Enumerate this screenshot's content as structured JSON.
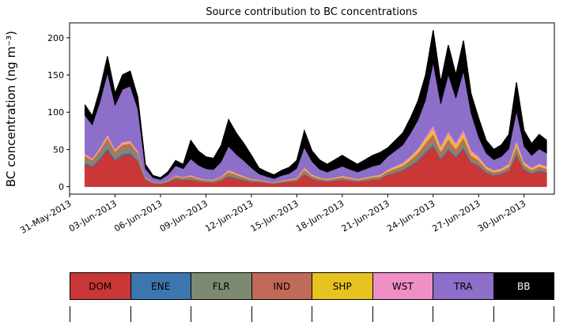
{
  "figure": {
    "title": "Source contribution to BC concentrations",
    "ylabel": "BC concentration (ng m⁻³)"
  },
  "chart_data": {
    "type": "area",
    "stacked": true,
    "title": "Source contribution to BC concentrations",
    "xlabel": "",
    "ylabel": "BC concentration (ng m⁻³)",
    "x_unit": "days since 31-May-2013 00:00",
    "xlim": [
      0,
      32
    ],
    "ylim": [
      -10,
      220
    ],
    "grid": false,
    "legend_position": "bottom strip",
    "outline_color": "#000000",
    "yticks": [
      0,
      50,
      100,
      150,
      200
    ],
    "xticks": [
      {
        "pos": 0,
        "label": "31-May-2013"
      },
      {
        "pos": 3,
        "label": "03-Jun-2013"
      },
      {
        "pos": 6,
        "label": "06-Jun-2013"
      },
      {
        "pos": 9,
        "label": "09-Jun-2013"
      },
      {
        "pos": 12,
        "label": "12-Jun-2013"
      },
      {
        "pos": 15,
        "label": "15-Jun-2013"
      },
      {
        "pos": 18,
        "label": "18-Jun-2013"
      },
      {
        "pos": 21,
        "label": "21-Jun-2013"
      },
      {
        "pos": 24,
        "label": "24-Jun-2013"
      },
      {
        "pos": 27,
        "label": "27-Jun-2013"
      },
      {
        "pos": 30,
        "label": "30-Jun-2013"
      }
    ],
    "x": [
      1,
      1.5,
      2,
      2.5,
      3,
      3.5,
      4,
      4.5,
      5,
      5.5,
      6,
      6.5,
      7,
      7.5,
      8,
      8.5,
      9,
      9.5,
      10,
      10.5,
      11,
      11.5,
      12,
      12.5,
      13,
      13.5,
      14,
      14.5,
      15,
      15.5,
      16,
      16.5,
      17,
      17.5,
      18,
      18.5,
      19,
      19.5,
      20,
      20.5,
      21,
      21.5,
      22,
      22.5,
      23,
      23.5,
      24,
      24.5,
      25,
      25.5,
      26,
      26.5,
      27,
      27.5,
      28,
      28.5,
      29,
      29.5,
      30,
      30.5,
      31,
      31.5
    ],
    "series": [
      {
        "name": "DOM",
        "color": "#c93736",
        "values": [
          30.8,
          26.6,
          36.4,
          49,
          35,
          42,
          43.4,
          33.6,
          9,
          4.5,
          3.6,
          6,
          10.5,
          9,
          9.3,
          7.2,
          6,
          5.7,
          8.3,
          13.5,
          10.8,
          8.7,
          6.3,
          6.3,
          5,
          4,
          5.5,
          6.5,
          7.7,
          16.5,
          10.6,
          7.9,
          6.6,
          7.9,
          9.2,
          7.9,
          6.6,
          7.9,
          9.2,
          10.1,
          15.6,
          18.6,
          21.6,
          27.6,
          34.5,
          45,
          54.6,
          36.4,
          49.4,
          39,
          51,
          32.5,
          27.6,
          18.6,
          15,
          16.8,
          21,
          42,
          22.5,
          17.4,
          21,
          18.6
        ]
      },
      {
        "name": "ENE",
        "color": "#3c76af",
        "values": [
          1.7,
          1.4,
          2,
          2.6,
          1.9,
          2.3,
          2.3,
          1.8,
          0.6,
          0.3,
          0.2,
          0.4,
          0.7,
          0.6,
          0.6,
          0.5,
          0.4,
          0.4,
          0.6,
          0.9,
          0.7,
          0.6,
          0.4,
          0.5,
          0.4,
          0.3,
          0.4,
          0.5,
          0.4,
          0.8,
          0.5,
          0.5,
          0.5,
          0.5,
          0.6,
          0.5,
          0.5,
          0.5,
          0.6,
          0.7,
          0.8,
          0.9,
          1.1,
          1.4,
          1.7,
          2.3,
          2.1,
          1.4,
          1.9,
          1.5,
          2,
          1.3,
          1.4,
          0.9,
          0.8,
          0.8,
          1.1,
          2.1,
          1.1,
          0.9,
          1.1,
          0.9
        ]
      },
      {
        "name": "FLR",
        "color": "#7d8a71",
        "values": [
          5,
          4.3,
          5.9,
          7.9,
          5.6,
          6.8,
          7,
          5.4,
          1.2,
          0.6,
          0.5,
          0.8,
          1.4,
          1.2,
          1.9,
          1.4,
          1.2,
          1.1,
          1.7,
          2.7,
          2.2,
          1.7,
          1.3,
          0.8,
          0.6,
          0.5,
          0.7,
          0.8,
          1.1,
          2.3,
          1.4,
          1.1,
          0.9,
          1.1,
          1.3,
          1.1,
          0.9,
          1.1,
          1.3,
          1.4,
          1.6,
          1.9,
          2.2,
          2.8,
          3.5,
          4.5,
          5.3,
          3.5,
          4.8,
          3.8,
          4.9,
          3.1,
          2.8,
          1.9,
          1.5,
          1.7,
          2.1,
          4.2,
          2.3,
          1.7,
          2.1,
          1.9
        ]
      },
      {
        "name": "IND",
        "color": "#c26a58",
        "values": [
          3.9,
          3.3,
          4.6,
          6.1,
          4.4,
          5.3,
          5.4,
          4.2,
          1.2,
          0.6,
          0.5,
          0.8,
          1.4,
          1.2,
          1.9,
          1.4,
          1.2,
          1.1,
          1.7,
          2.7,
          2.2,
          1.7,
          1.3,
          1,
          0.8,
          0.6,
          0.9,
          1,
          1.4,
          3,
          1.9,
          1.4,
          1.2,
          1.4,
          1.7,
          1.4,
          1.2,
          1.4,
          1.7,
          1.8,
          2.3,
          2.8,
          3.2,
          4.1,
          5.2,
          6.8,
          8.4,
          5.6,
          7.6,
          6,
          7.8,
          5,
          3.7,
          2.5,
          2,
          2.2,
          2.8,
          5.6,
          3,
          2.3,
          2.8,
          2.5
        ]
      },
      {
        "name": "SHP",
        "color": "#e6c321",
        "values": [
          1.1,
          1,
          1.3,
          1.8,
          1.3,
          1.5,
          1.6,
          1.2,
          0.6,
          0.3,
          0.2,
          0.4,
          0.7,
          0.6,
          0.9,
          0.7,
          0.6,
          0.6,
          0.8,
          1.4,
          1.1,
          0.9,
          0.6,
          0.5,
          0.4,
          0.3,
          0.4,
          0.5,
          0.7,
          1.5,
          1,
          0.9,
          0.8,
          0.9,
          1.1,
          0.9,
          0.8,
          0.9,
          1.1,
          1.2,
          1.6,
          1.9,
          2.2,
          2.8,
          3.5,
          4.5,
          6.3,
          4.2,
          5.7,
          4.5,
          5.9,
          3.8,
          2.8,
          1.9,
          1.5,
          1.7,
          2.1,
          4.2,
          2.3,
          1.7,
          2.1,
          1.9
        ]
      },
      {
        "name": "WST",
        "color": "#ef8fc5",
        "values": [
          1.7,
          1.4,
          2,
          2.6,
          1.9,
          2.3,
          2.3,
          1.8,
          0.6,
          0.3,
          0.2,
          0.4,
          0.7,
          0.6,
          0.9,
          0.7,
          0.6,
          0.6,
          0.8,
          1.4,
          1.1,
          0.9,
          0.6,
          0.5,
          0.4,
          0.3,
          0.4,
          0.5,
          0.7,
          1.5,
          1,
          0.7,
          0.6,
          0.7,
          0.8,
          0.7,
          0.6,
          0.7,
          0.8,
          0.9,
          1.3,
          1.6,
          1.8,
          2.3,
          2.9,
          3.8,
          5.3,
          3.5,
          4.8,
          3.8,
          4.9,
          3.1,
          2.3,
          1.6,
          1.3,
          1.4,
          1.8,
          3.5,
          1.9,
          1.5,
          1.8,
          1.6
        ]
      },
      {
        "name": "TRA",
        "color": "#8d6ec9",
        "values": [
          51.7,
          44.7,
          61.1,
          82.3,
          58.8,
          70.5,
          72.9,
          56.4,
          10.8,
          5.4,
          4.3,
          7.2,
          12.6,
          10.8,
          21.7,
          16.8,
          14,
          13.3,
          19.3,
          31.5,
          25.2,
          20.3,
          14.7,
          7.5,
          6,
          4.8,
          6.6,
          7.8,
          12.6,
          27,
          17.3,
          10.8,
          9,
          10.8,
          12.6,
          10.8,
          9,
          10.8,
          12.6,
          13.8,
          17.2,
          20.5,
          23.8,
          30.4,
          38,
          49.5,
          84,
          56,
          76,
          60,
          78.4,
          50,
          25.8,
          17.4,
          14,
          15.7,
          19.6,
          39.2,
          21,
          16.2,
          19.6,
          17.4
        ]
      },
      {
        "name": "BB",
        "color": "#000000",
        "values": [
          14.3,
          12.4,
          16.9,
          22.8,
          16.3,
          19.5,
          20.2,
          15.6,
          6,
          3,
          2.4,
          4,
          7,
          6,
          24.8,
          19.2,
          16,
          15.2,
          22,
          36,
          28.8,
          23.2,
          16.8,
          8,
          6.4,
          5.1,
          7,
          8.3,
          10.5,
          22.5,
          14.4,
          12.6,
          10.5,
          12.6,
          14.7,
          12.6,
          10.5,
          12.6,
          14.7,
          16.1,
          11.7,
          14,
          16.2,
          20.7,
          25.9,
          33.8,
          44.1,
          29.4,
          39.9,
          31.5,
          41.2,
          26.3,
          25.8,
          17.4,
          14,
          15.7,
          19.6,
          39.2,
          21,
          16.2,
          19.6,
          17.4
        ]
      }
    ]
  },
  "legend": {
    "items": [
      {
        "label": "DOM",
        "color": "#c93736",
        "text_color": "#000000"
      },
      {
        "label": "ENE",
        "color": "#3c76af",
        "text_color": "#000000"
      },
      {
        "label": "FLR",
        "color": "#7d8a71",
        "text_color": "#000000"
      },
      {
        "label": "IND",
        "color": "#c26a58",
        "text_color": "#000000"
      },
      {
        "label": "SHP",
        "color": "#e6c321",
        "text_color": "#000000"
      },
      {
        "label": "WST",
        "color": "#ef8fc5",
        "text_color": "#000000"
      },
      {
        "label": "TRA",
        "color": "#8d6ec9",
        "text_color": "#000000"
      },
      {
        "label": "BB",
        "color": "#000000",
        "text_color": "#ffffff"
      }
    ]
  }
}
